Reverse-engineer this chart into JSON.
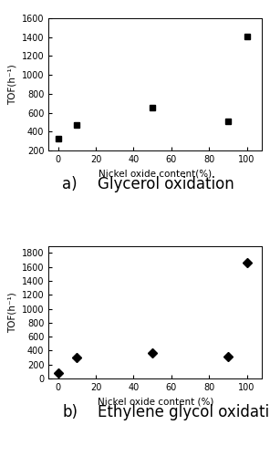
{
  "plot_a": {
    "x": [
      0,
      10,
      50,
      90,
      100
    ],
    "y": [
      330,
      470,
      660,
      510,
      1410
    ],
    "xlabel": "Nickel oxide content(%)",
    "ylabel": "TOF(h⁻¹)",
    "ylim": [
      200,
      1600
    ],
    "yticks": [
      200,
      400,
      600,
      800,
      1000,
      1200,
      1400,
      1600
    ],
    "xlim": [
      -5,
      108
    ],
    "xticks": [
      0,
      20,
      40,
      60,
      80,
      100
    ],
    "label_a": "a)",
    "label_b": "Glycerol oxidation",
    "marker": "s",
    "markersize": 5
  },
  "plot_b": {
    "x": [
      0,
      10,
      50,
      90,
      100
    ],
    "y": [
      80,
      305,
      370,
      315,
      1660
    ],
    "xlabel": "Nickel oxide content (%)",
    "ylabel": "TOF(h⁻¹)",
    "ylim": [
      0,
      1900
    ],
    "yticks": [
      0,
      200,
      400,
      600,
      800,
      1000,
      1200,
      1400,
      1600,
      1800
    ],
    "xlim": [
      -5,
      108
    ],
    "xticks": [
      0,
      20,
      40,
      60,
      80,
      100
    ],
    "label_a": "b)",
    "label_b": "Ethylene glycol oxidation",
    "marker": "D",
    "markersize": 5
  },
  "marker_color": "#000000",
  "background_color": "#ffffff",
  "sublabel_fontsize": 12,
  "axis_label_fontsize": 7.5,
  "tick_fontsize": 7
}
